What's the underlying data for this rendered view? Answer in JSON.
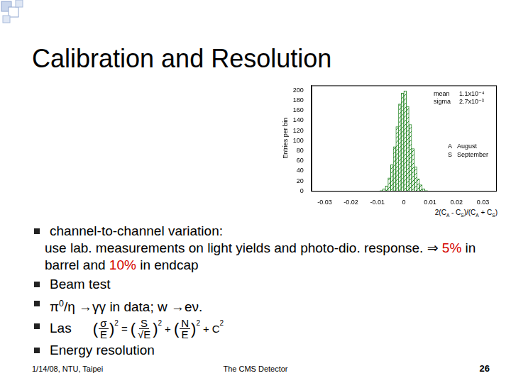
{
  "header": {
    "title": "Calibration and Resolution"
  },
  "bullets": [
    {
      "runs": [
        {
          "text": "channel-to-channel variation:"
        }
      ],
      "continuation": [
        {
          "text": "use lab. measurements on light yields and photo-dio. response. ⇒ "
        },
        {
          "text": "5%",
          "color": "#d40000"
        },
        {
          "text": " in barrel and "
        },
        {
          "text": "10%",
          "color": "#d40000"
        },
        {
          "text": " in endcap"
        }
      ]
    },
    {
      "runs": [
        {
          "text": "Beam test"
        }
      ]
    },
    {
      "runs": [
        {
          "text": "π"
        },
        {
          "text": "0",
          "sup": true
        },
        {
          "text": "/η →γγ in data; w →eν."
        }
      ]
    },
    {
      "runs": [
        {
          "text": "Las"
        }
      ],
      "formula": [
        {
          "open": "(",
          "num": "σ",
          "den": "E",
          "close": ")",
          "power": "2"
        },
        "=",
        {
          "open": "(",
          "num": "S",
          "den": "√E",
          "close": ")",
          "power": "2"
        },
        "+",
        {
          "open": "(",
          "num": "N",
          "den": "E",
          "close": ")",
          "power": "2"
        },
        "+",
        {
          "text": "C",
          "power": "2"
        }
      ]
    },
    {
      "runs": [
        {
          "text": "Energy resolution"
        }
      ]
    }
  ],
  "chart_data": {
    "type": "histogram",
    "bins": [
      -0.012,
      -0.011,
      -0.01,
      -0.009,
      -0.008,
      -0.007,
      -0.006,
      -0.005,
      -0.004,
      -0.003,
      -0.002,
      -0.001,
      0,
      0.001,
      0.002,
      0.003,
      0.004,
      0.005,
      0.006,
      0.007,
      0.008,
      0.009,
      0.01,
      0.011,
      0.012
    ],
    "values": [
      0,
      0,
      0,
      1,
      4,
      10,
      26,
      52,
      88,
      128,
      173,
      195,
      199,
      168,
      132,
      84,
      48,
      24,
      12,
      4,
      1,
      0,
      0,
      0
    ],
    "color": "#2e8b2e",
    "xlim": [
      -0.035,
      0.035
    ],
    "xticks": [
      -0.03,
      -0.02,
      -0.01,
      0,
      0.01,
      0.02,
      0.03
    ],
    "ylim": [
      0,
      210
    ],
    "yticks": [
      0,
      20,
      40,
      60,
      80,
      100,
      120,
      140,
      160,
      180,
      200
    ],
    "grid": false,
    "y_label": "Entries per bin",
    "x_label": [
      {
        "text": "2(C"
      },
      {
        "text": "A",
        "sub": true
      },
      {
        "text": " - C"
      },
      {
        "text": "S",
        "sub": true
      },
      {
        "text": ")/(C"
      },
      {
        "text": "A",
        "sub": true
      },
      {
        "text": " + C"
      },
      {
        "text": "S",
        "sub": true
      },
      {
        "text": ")"
      }
    ],
    "stats": [
      {
        "label": "mean",
        "value": "1.1x10⁻⁴"
      },
      {
        "label": "sigma",
        "value": "2.7x10⁻³"
      }
    ],
    "legend_entries": [
      {
        "marker": "A",
        "text": "August"
      },
      {
        "marker": "S",
        "text": "September"
      }
    ]
  },
  "footer": {
    "left": "1/14/08, NTU, Taipei",
    "center": "The CMS Detector",
    "page": "26"
  }
}
